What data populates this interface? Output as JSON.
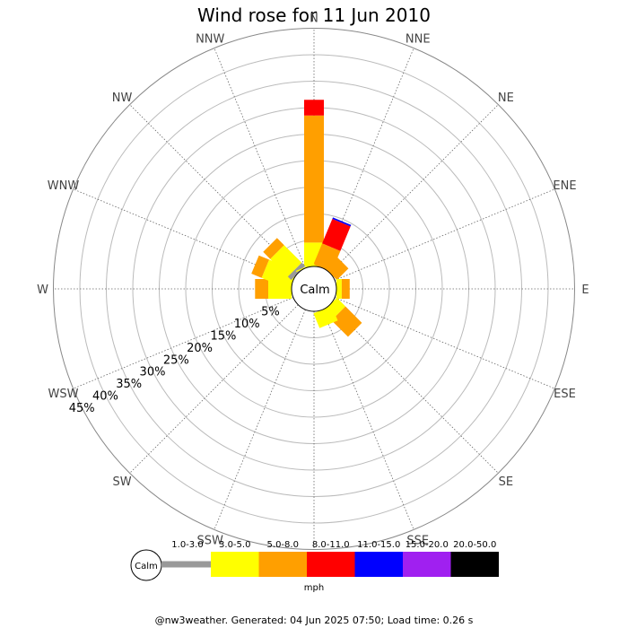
{
  "chart_data": {
    "type": "windrose",
    "title": "Wind rose for 11 Jun 2010",
    "directions": [
      "N",
      "NNE",
      "NE",
      "ENE",
      "E",
      "ESE",
      "SE",
      "SSE",
      "S",
      "SSW",
      "SW",
      "WSW",
      "W",
      "WNW",
      "NW",
      "NNW"
    ],
    "percent_rings": [
      5,
      10,
      15,
      20,
      25,
      30,
      35,
      40,
      45
    ],
    "percent_labels": [
      "5%",
      "10%",
      "15%",
      "20%",
      "25%",
      "30%",
      "35%",
      "40%",
      "45%"
    ],
    "calm_label": "Calm",
    "speed_unit": "mph",
    "speed_bins": [
      {
        "label": "1.0-3.0",
        "color": "#999999"
      },
      {
        "label": "3.0-5.0",
        "color": "#ffff00"
      },
      {
        "label": "5.0-8.0",
        "color": "#ff9f00"
      },
      {
        "label": "8.0-11.0",
        "color": "#ff0000"
      },
      {
        "label": "11.0-15.0",
        "color": "#0000ff"
      },
      {
        "label": "15.0-20.0",
        "color": "#a020f0"
      },
      {
        "label": "20.0-50.0",
        "color": "#000000"
      }
    ],
    "cumulative_percent": {
      "N": [
        0,
        4.5,
        28.5,
        31.5
      ],
      "NNE": [
        0,
        0,
        4.3,
        9.3,
        9.6
      ],
      "NE": [
        0,
        0,
        3.1
      ],
      "ENE": [
        0,
        0,
        0
      ],
      "E": [
        0,
        1.0,
        2.5
      ],
      "ESE": [
        0,
        0,
        0
      ],
      "SE": [
        0,
        2.3,
        6.7
      ],
      "SSE": [
        0,
        3.0
      ],
      "S": [
        0,
        0
      ],
      "SSW": [
        0,
        0
      ],
      "SW": [
        0,
        0
      ],
      "WSW": [
        0,
        0
      ],
      "W": [
        0,
        4.4,
        6.9
      ],
      "WNW": [
        0,
        5.7,
        7.8
      ],
      "NW": [
        0.9,
        5.6,
        7.5
      ],
      "NNW": [
        0,
        0.2
      ]
    }
  },
  "legend": {
    "calm_label": "Calm",
    "unit": "mph"
  },
  "footer": "@nw3weather. Generated: 04 Jun 2025 07:50; Load time: 0.26 s"
}
